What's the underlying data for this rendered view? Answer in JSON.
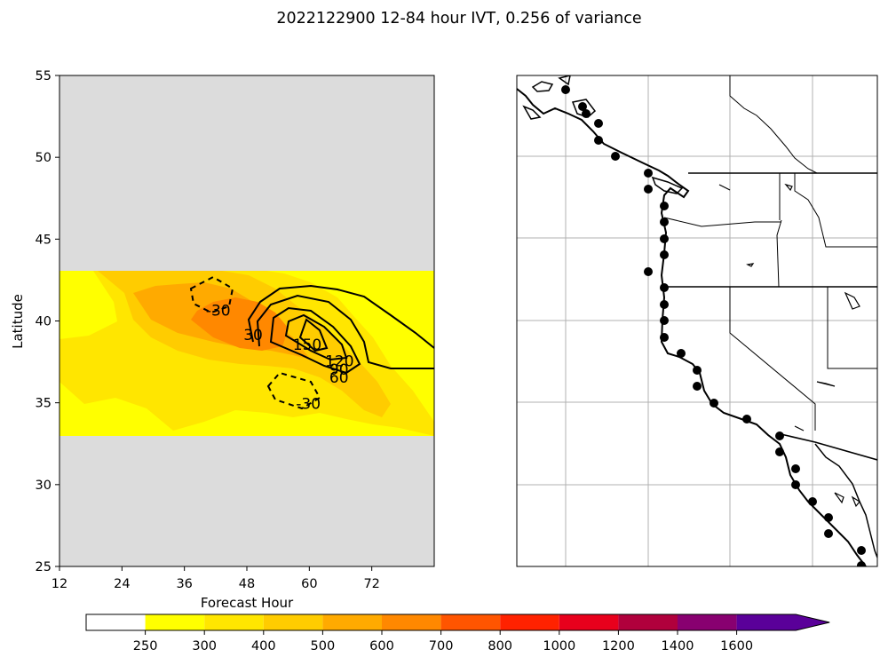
{
  "figure_title": "2022122900 12-84 hour IVT, 0.256 of variance",
  "chart_data": [
    {
      "type": "contour",
      "xlabel": "Forecast Hour",
      "ylabel": "Latitude",
      "xlim": [
        12,
        84
      ],
      "ylim": [
        25,
        55
      ],
      "xticks": [
        "12",
        "24",
        "36",
        "48",
        "60",
        "72"
      ],
      "yticks": [
        "25",
        "30",
        "35",
        "40",
        "45",
        "50",
        "55"
      ],
      "valid_lat_range": [
        33,
        43
      ],
      "missing_color": "#dcdcdc",
      "contour_labels": [
        {
          "text": "-30",
          "x": 42.5,
          "y": 40.6
        },
        {
          "text": "-30",
          "x": 59.8,
          "y": 34.9
        },
        {
          "text": "30",
          "x": 49.2,
          "y": 39.1
        },
        {
          "text": "150",
          "x": 59.6,
          "y": 38.5
        },
        {
          "text": "120",
          "x": 65.8,
          "y": 37.5
        },
        {
          "text": "90",
          "x": 65.7,
          "y": 37.0
        },
        {
          "text": "60",
          "x": 65.7,
          "y": 36.5
        }
      ]
    },
    {
      "type": "map",
      "point_marker_color": "#000000",
      "gridline_color": "#b0b0b0"
    }
  ],
  "colorbar": {
    "levels": [
      "250",
      "300",
      "400",
      "500",
      "600",
      "700",
      "800",
      "1000",
      "1200",
      "1400",
      "1600"
    ],
    "colors": [
      "#ffffff",
      "#ffff00",
      "#ffe600",
      "#ffcc00",
      "#ffaa00",
      "#ff8800",
      "#ff5500",
      "#ff2200",
      "#e8001c",
      "#b0003c",
      "#880070",
      "#5a0099"
    ]
  }
}
